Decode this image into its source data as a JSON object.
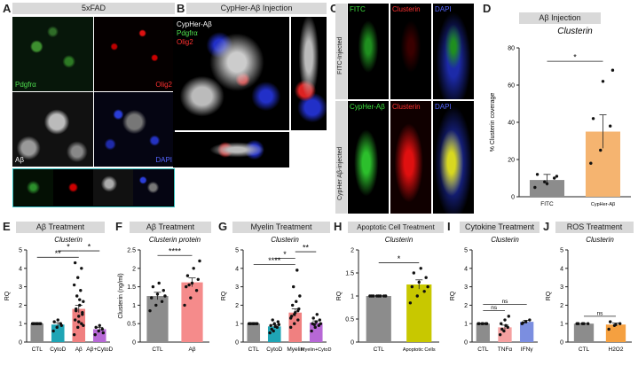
{
  "panels": {
    "A": {
      "letter": "A",
      "header": "5xFAD",
      "ch1": "Pdgfrα",
      "ch2": "Olig2",
      "ch3": "Aβ",
      "ch4": "DAPI"
    },
    "B": {
      "letter": "B",
      "header": "CypHer-Aβ Injection",
      "ch1": "CypHer-Aβ",
      "ch2": "Pdgfrα",
      "ch3": "Olig2"
    },
    "C": {
      "letter": "C",
      "row1": "FITC-Injected",
      "row2": "CypHer Aβ-injected",
      "ch_fitc": "FITC",
      "ch_cypher": "CypHer-Aβ",
      "ch_clu": "Clusterin",
      "ch_dapi": "DAPI"
    },
    "D": {
      "letter": "D",
      "header": "Aβ Injection"
    },
    "E": {
      "letter": "E",
      "header": "Aβ Treatment"
    },
    "F": {
      "letter": "F",
      "header": "Aβ Treatment"
    },
    "G": {
      "letter": "G",
      "header": "Myelin Treatment"
    },
    "H": {
      "letter": "H",
      "header": "Apoptotic Cell Treatment"
    },
    "I": {
      "letter": "I",
      "header": "Cytokine Treatment"
    },
    "J": {
      "letter": "J",
      "header": "ROS Treatment"
    }
  },
  "chart_data": [
    {
      "id": "D",
      "type": "bar",
      "title": "Clusterin",
      "ylabel": "% Clusterin coverage",
      "categories": [
        "FITC",
        "CypHer-Aβ"
      ],
      "values": [
        9,
        35
      ],
      "errors": [
        3,
        9
      ],
      "ylim": [
        0,
        80
      ],
      "yticks": [
        0,
        20,
        40,
        60,
        80
      ],
      "colors": [
        "#8c8c8c",
        "#f5b470"
      ],
      "points": [
        [
          5,
          8,
          10,
          12,
          7,
          11
        ],
        [
          18,
          25,
          38,
          42,
          62,
          68
        ]
      ],
      "sig": [
        {
          "a": 0,
          "b": 1,
          "label": "*"
        }
      ]
    },
    {
      "id": "E",
      "type": "bar",
      "title": "Clusterin",
      "ylabel": "RQ",
      "categories": [
        "CTL",
        "CytoD",
        "Aβ",
        "Aβ+CytoD"
      ],
      "values": [
        1.0,
        0.95,
        1.8,
        0.7
      ],
      "errors": [
        0.02,
        0.1,
        0.2,
        0.1
      ],
      "ylim": [
        0,
        5
      ],
      "yticks": [
        0,
        1,
        2,
        3,
        4,
        5
      ],
      "colors": [
        "#8c8c8c",
        "#1fa5b5",
        "#f08080",
        "#b768d6"
      ],
      "points": [
        [
          1,
          1,
          1,
          1,
          1,
          1,
          1,
          1
        ],
        [
          0.6,
          0.8,
          1.0,
          1.1,
          1.2,
          0.9
        ],
        [
          0.4,
          0.8,
          1.0,
          1.2,
          1.4,
          1.6,
          1.8,
          2.0,
          2.2,
          2.5,
          2.8,
          3.1,
          3.5,
          4.0,
          4.3,
          1.1,
          1.5,
          1.7,
          2.3,
          0.9
        ],
        [
          0.4,
          0.6,
          0.7,
          0.8,
          0.9,
          0.5
        ]
      ],
      "sig": [
        {
          "a": 0,
          "b": 2,
          "label": "**"
        },
        {
          "a": 1,
          "b": 2,
          "label": "*"
        },
        {
          "a": 2,
          "b": 3,
          "label": "*"
        }
      ]
    },
    {
      "id": "F",
      "type": "bar",
      "title": "Clusterin protein",
      "ylabel": "Clusterin (ng/ml)",
      "categories": [
        "CTL",
        "Aβ"
      ],
      "values": [
        1.25,
        1.62
      ],
      "errors": [
        0.1,
        0.12
      ],
      "ylim": [
        0,
        2.5
      ],
      "yticks": [
        0,
        0.5,
        1,
        1.5,
        2,
        2.5
      ],
      "colors": [
        "#8c8c8c",
        "#f58b8b"
      ],
      "points": [
        [
          0.85,
          1.0,
          1.1,
          1.2,
          1.3,
          1.4,
          1.5,
          1.6,
          1.25
        ],
        [
          1.0,
          1.2,
          1.4,
          1.5,
          1.6,
          1.7,
          1.8,
          2.0,
          2.2,
          1.55
        ]
      ],
      "sig": [
        {
          "a": 0,
          "b": 1,
          "label": "****"
        }
      ]
    },
    {
      "id": "G",
      "type": "bar",
      "title": "Clusterin",
      "ylabel": "RQ",
      "categories": [
        "CTL",
        "CytoD",
        "Myelin",
        "Myelin+CytoD"
      ],
      "values": [
        1.0,
        0.85,
        1.6,
        1.05
      ],
      "errors": [
        0.02,
        0.08,
        0.2,
        0.1
      ],
      "ylim": [
        0,
        5
      ],
      "yticks": [
        0,
        1,
        2,
        3,
        4,
        5
      ],
      "colors": [
        "#8c8c8c",
        "#1fa5b5",
        "#f08080",
        "#b768d6"
      ],
      "points": [
        [
          1,
          1,
          1,
          1,
          1,
          1,
          1,
          1
        ],
        [
          0.5,
          0.6,
          0.8,
          0.9,
          1.0,
          1.1,
          0.7,
          0.85,
          0.95,
          1.2
        ],
        [
          0.8,
          1.0,
          1.2,
          1.4,
          1.6,
          1.8,
          2.0,
          2.2,
          2.5,
          3.0,
          3.9,
          1.3,
          1.5,
          1.7
        ],
        [
          0.6,
          0.8,
          0.9,
          1.0,
          1.1,
          1.2,
          1.3,
          1.5,
          1.0,
          0.95
        ]
      ],
      "sig": [
        {
          "a": 0,
          "b": 2,
          "label": "****"
        },
        {
          "a": 1,
          "b": 2,
          "label": "*"
        },
        {
          "a": 2,
          "b": 3,
          "label": "**"
        }
      ]
    },
    {
      "id": "H",
      "type": "bar",
      "title": "Clusterin",
      "ylabel": "RQ",
      "categories": [
        "CTL",
        "Apoptotic Cells"
      ],
      "values": [
        1.0,
        1.25
      ],
      "errors": [
        0.01,
        0.1
      ],
      "ylim": [
        0,
        2
      ],
      "yticks": [
        0,
        0.5,
        1,
        1.5,
        2
      ],
      "colors": [
        "#8c8c8c",
        "#c8c800"
      ],
      "points": [
        [
          1,
          1,
          1,
          1,
          1,
          1,
          1,
          1
        ],
        [
          0.85,
          1.0,
          1.1,
          1.2,
          1.3,
          1.4,
          1.5,
          1.6,
          1.2
        ]
      ],
      "sig": [
        {
          "a": 0,
          "b": 1,
          "label": "*"
        }
      ]
    },
    {
      "id": "I",
      "type": "bar",
      "title": "Clusterin",
      "ylabel": "RQ",
      "categories": [
        "CTL",
        "TNFα",
        "IFNγ"
      ],
      "values": [
        1.0,
        0.8,
        1.1
      ],
      "errors": [
        0.02,
        0.12,
        0.08
      ],
      "ylim": [
        0,
        5
      ],
      "yticks": [
        0,
        1,
        2,
        3,
        4,
        5
      ],
      "colors": [
        "#8c8c8c",
        "#f5a0a0",
        "#7b8ee0"
      ],
      "points": [
        [
          1,
          1,
          1,
          1,
          1,
          1
        ],
        [
          0.4,
          0.6,
          0.8,
          1.0,
          1.2,
          1.4,
          0.7,
          0.9
        ],
        [
          1.0,
          1.1,
          1.2,
          1.05
        ]
      ],
      "sig": [
        {
          "a": 0,
          "b": 1,
          "label": "ns"
        },
        {
          "a": 0,
          "b": 2,
          "label": "ns"
        }
      ]
    },
    {
      "id": "J",
      "type": "bar",
      "title": "Clusterin",
      "ylabel": "RQ",
      "categories": [
        "CTL",
        "H2O2"
      ],
      "values": [
        1.0,
        0.95
      ],
      "errors": [
        0.01,
        0.08
      ],
      "ylim": [
        0,
        5
      ],
      "yticks": [
        0,
        1,
        2,
        3,
        4,
        5
      ],
      "colors": [
        "#8c8c8c",
        "#f5a040"
      ],
      "points": [
        [
          1,
          1,
          1,
          1,
          1
        ],
        [
          0.7,
          0.9,
          1.0,
          1.1,
          0.95
        ]
      ],
      "sig": [
        {
          "a": 0,
          "b": 1,
          "label": "ns"
        }
      ]
    }
  ]
}
